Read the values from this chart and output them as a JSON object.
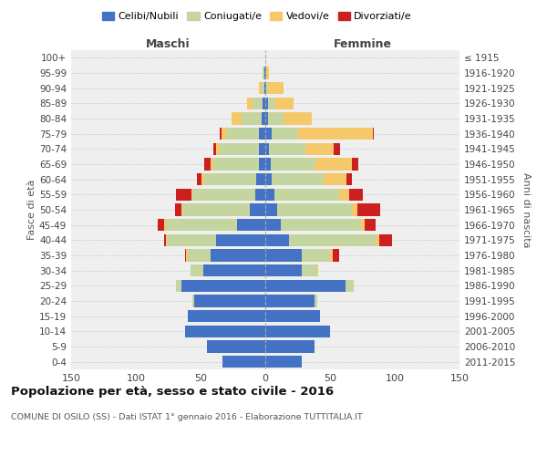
{
  "age_groups": [
    "100+",
    "95-99",
    "90-94",
    "85-89",
    "80-84",
    "75-79",
    "70-74",
    "65-69",
    "60-64",
    "55-59",
    "50-54",
    "45-49",
    "40-44",
    "35-39",
    "30-34",
    "25-29",
    "20-24",
    "15-19",
    "10-14",
    "5-9",
    "0-4"
  ],
  "birth_years": [
    "≤ 1915",
    "1916-1920",
    "1921-1925",
    "1926-1930",
    "1931-1935",
    "1936-1940",
    "1941-1945",
    "1946-1950",
    "1951-1955",
    "1956-1960",
    "1961-1965",
    "1966-1970",
    "1971-1975",
    "1976-1980",
    "1981-1985",
    "1986-1990",
    "1991-1995",
    "1996-2000",
    "2001-2005",
    "2006-2010",
    "2011-2015"
  ],
  "maschi": {
    "celibi": [
      0,
      1,
      1,
      2,
      3,
      5,
      5,
      5,
      7,
      8,
      12,
      22,
      38,
      42,
      48,
      65,
      55,
      60,
      62,
      45,
      33
    ],
    "coniugati": [
      0,
      1,
      2,
      8,
      15,
      25,
      30,
      35,
      40,
      48,
      52,
      55,
      38,
      18,
      10,
      4,
      1,
      0,
      0,
      0,
      0
    ],
    "vedovi": [
      0,
      0,
      2,
      4,
      8,
      4,
      3,
      2,
      2,
      1,
      1,
      1,
      1,
      1,
      0,
      0,
      0,
      0,
      0,
      0,
      0
    ],
    "divorziati": [
      0,
      0,
      0,
      0,
      0,
      1,
      2,
      5,
      4,
      12,
      5,
      5,
      1,
      1,
      0,
      0,
      0,
      0,
      0,
      0,
      0
    ]
  },
  "femmine": {
    "nubili": [
      0,
      1,
      1,
      2,
      2,
      5,
      3,
      4,
      5,
      7,
      9,
      12,
      18,
      28,
      28,
      62,
      38,
      42,
      50,
      38,
      28
    ],
    "coniugate": [
      0,
      0,
      1,
      6,
      12,
      20,
      28,
      35,
      40,
      50,
      58,
      62,
      68,
      22,
      12,
      6,
      2,
      0,
      0,
      0,
      0
    ],
    "vedove": [
      0,
      2,
      12,
      14,
      22,
      58,
      22,
      28,
      18,
      8,
      4,
      3,
      2,
      2,
      1,
      0,
      0,
      0,
      0,
      0,
      0
    ],
    "divorziate": [
      0,
      0,
      0,
      0,
      0,
      1,
      5,
      5,
      4,
      10,
      18,
      8,
      10,
      5,
      0,
      0,
      0,
      0,
      0,
      0,
      0
    ]
  },
  "colors": {
    "celibi": "#4472C4",
    "coniugati": "#C5D5A0",
    "vedovi": "#F5C96A",
    "divorziati": "#CC2020"
  },
  "xlim": 150,
  "title": "Popolazione per età, sesso e stato civile - 2016",
  "subtitle": "COMUNE DI OSILO (SS) - Dati ISTAT 1° gennaio 2016 - Elaborazione TUTTITALIA.IT",
  "ylabel_left": "Fasce di età",
  "ylabel_right": "Anni di nascita",
  "xlabel_left": "Maschi",
  "xlabel_right": "Femmine",
  "bg_color": "#efefef",
  "grid_color": "#cccccc"
}
